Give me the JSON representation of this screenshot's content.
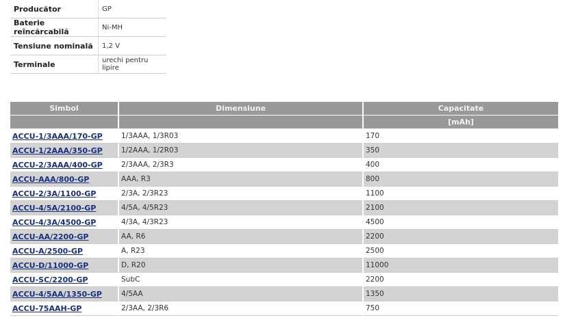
{
  "info": [
    {
      "label": "Producător",
      "value": "GP"
    },
    {
      "label": "Baterie reîncărcabilă",
      "value": "Ni-MH"
    },
    {
      "label": "Tensiune nominală",
      "value": "1,2 V"
    },
    {
      "label": "Terminale",
      "value": "urechi pentru lipire"
    }
  ],
  "table": {
    "headers": [
      "Simbol",
      "Dimensiune",
      "Capacitate"
    ],
    "units": [
      "",
      "",
      "[mAh]"
    ],
    "rows": [
      [
        "ACCU-1/3AAA/170-GP",
        "1/3AAA, 1/3R03",
        "170"
      ],
      [
        "ACCU-1/2AAA/350-GP",
        "1/2AAA, 1/2R03",
        "350"
      ],
      [
        "ACCU-2/3AAA/400-GP",
        "2/3AAA, 2/3R3",
        "400"
      ],
      [
        "ACCU-AAA/800-GP",
        "AAA, R3",
        "800"
      ],
      [
        "ACCU-2/3A/1100-GP",
        "2/3A, 2/3R23",
        "1100"
      ],
      [
        "ACCU-4/5A/2100-GP",
        "4/5A, 4/5R23",
        "2100"
      ],
      [
        "ACCU-4/3A/4500-GP",
        "4/3A, 4/3R23",
        "4500"
      ],
      [
        "ACCU-AA/2200-GP",
        "AA, R6",
        "2200"
      ],
      [
        "ACCU-A/2500-GP",
        "A, R23",
        "2500"
      ],
      [
        "ACCU-D/11000-GP",
        "D, R20",
        "11000"
      ],
      [
        "ACCU-SC/2200-GP",
        "SubC",
        "2200"
      ],
      [
        "ACCU-4/5AA/1350-GP",
        "4/5AA",
        "1350"
      ],
      [
        "ACCU-75AAH-GP",
        "2/3AA, 2/3R6",
        "750"
      ]
    ]
  }
}
